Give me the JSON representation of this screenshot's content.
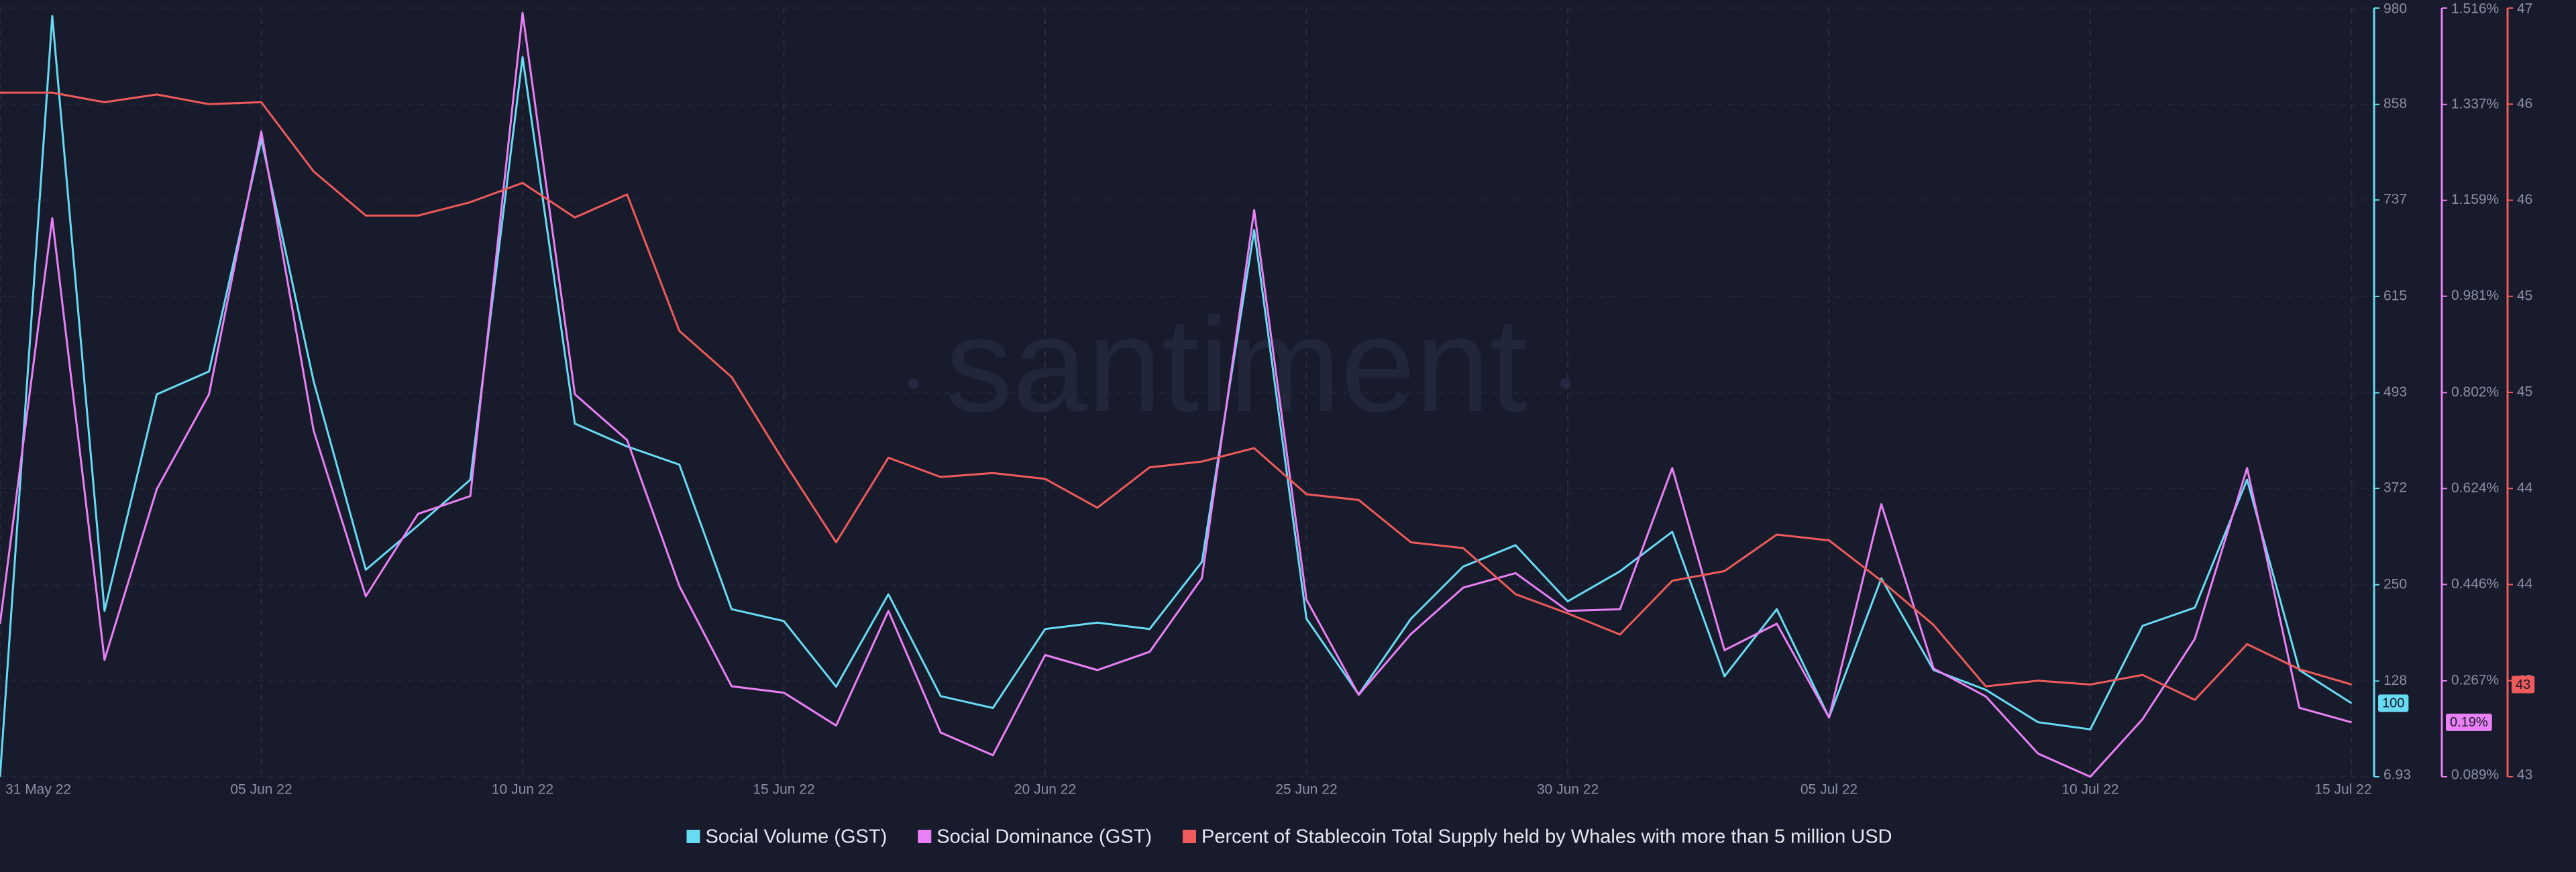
{
  "chart_data": {
    "type": "line",
    "watermark": "santiment",
    "x": [
      "2022-05-31",
      "2022-06-01",
      "2022-06-02",
      "2022-06-03",
      "2022-06-04",
      "2022-06-05",
      "2022-06-06",
      "2022-06-07",
      "2022-06-08",
      "2022-06-09",
      "2022-06-10",
      "2022-06-11",
      "2022-06-12",
      "2022-06-13",
      "2022-06-14",
      "2022-06-15",
      "2022-06-16",
      "2022-06-17",
      "2022-06-18",
      "2022-06-19",
      "2022-06-20",
      "2022-06-21",
      "2022-06-22",
      "2022-06-23",
      "2022-06-24",
      "2022-06-25",
      "2022-06-26",
      "2022-06-27",
      "2022-06-28",
      "2022-06-29",
      "2022-06-30",
      "2022-07-01",
      "2022-07-02",
      "2022-07-03",
      "2022-07-04",
      "2022-07-05",
      "2022-07-06",
      "2022-07-07",
      "2022-07-08",
      "2022-07-09",
      "2022-07-10",
      "2022-07-11",
      "2022-07-12",
      "2022-07-13",
      "2022-07-14",
      "2022-07-15"
    ],
    "xticks": [
      {
        "value": "2022-05-31",
        "label": "31 May 22"
      },
      {
        "value": "2022-06-05",
        "label": "05 Jun 22"
      },
      {
        "value": "2022-06-10",
        "label": "10 Jun 22"
      },
      {
        "value": "2022-06-15",
        "label": "15 Jun 22"
      },
      {
        "value": "2022-06-20",
        "label": "20 Jun 22"
      },
      {
        "value": "2022-06-25",
        "label": "25 Jun 22"
      },
      {
        "value": "2022-06-30",
        "label": "30 Jun 22"
      },
      {
        "value": "2022-07-05",
        "label": "05 Jul 22"
      },
      {
        "value": "2022-07-10",
        "label": "10 Jul 22"
      },
      {
        "value": "2022-07-15",
        "label": "15 Jul 22"
      }
    ],
    "ylim": [
      6.93,
      980
    ],
    "yticks": [
      6.93,
      128,
      250,
      372,
      493,
      615,
      737,
      858,
      980
    ],
    "y2lim": [
      0.089,
      1.516
    ],
    "y2ticks": [
      {
        "value": 0.089,
        "label": "0.089%"
      },
      {
        "value": 0.267,
        "label": "0.267%"
      },
      {
        "value": 0.446,
        "label": "0.446%"
      },
      {
        "value": 0.624,
        "label": "0.624%"
      },
      {
        "value": 0.802,
        "label": "0.802%"
      },
      {
        "value": 0.981,
        "label": "0.981%"
      },
      {
        "value": 1.159,
        "label": "1.159%"
      },
      {
        "value": 1.337,
        "label": "1.337%"
      },
      {
        "value": 1.516,
        "label": "1.516%"
      }
    ],
    "y3lim": [
      43,
      47
    ],
    "y3ticks": [
      43,
      {
        "value": 43.5,
        "label": "43"
      },
      44,
      {
        "value": 44.5,
        "label": "44"
      },
      45,
      {
        "value": 45.5,
        "label": "45"
      },
      46,
      {
        "value": 46.5,
        "label": "46"
      },
      47
    ],
    "grid": true,
    "series": [
      {
        "name": "Social Volume (GST)",
        "color": "#68dbf4",
        "axis": "y",
        "last_label": "100",
        "values": [
          6.93,
          970,
          217,
          491,
          520,
          814,
          508,
          269,
          325,
          383,
          918,
          454,
          425,
          402,
          219,
          204,
          121,
          238,
          109,
          94,
          194,
          202,
          194,
          279,
          699,
          207,
          111,
          207,
          273,
          300,
          229,
          267,
          317,
          134,
          219,
          82,
          258,
          142,
          117,
          76,
          67,
          198,
          221,
          383,
          142,
          100
        ]
      },
      {
        "name": "Social Dominance (GST)",
        "color": "#ea80f5",
        "axis": "y2",
        "last_label": "0.19%",
        "values": [
          0.373,
          1.126,
          0.306,
          0.623,
          0.799,
          1.287,
          0.732,
          0.424,
          0.577,
          0.61,
          1.507,
          0.799,
          0.714,
          0.443,
          0.257,
          0.245,
          0.184,
          0.397,
          0.171,
          0.129,
          0.315,
          0.287,
          0.321,
          0.458,
          1.141,
          0.418,
          0.241,
          0.354,
          0.44,
          0.467,
          0.397,
          0.4,
          0.662,
          0.324,
          0.373,
          0.199,
          0.595,
          0.29,
          0.238,
          0.132,
          0.089,
          0.196,
          0.345,
          0.662,
          0.217,
          0.19
        ]
      },
      {
        "name": "Percent of Stablecoin Total Supply held by Whales with more than 5 million USD",
        "color": "#ef5b5b",
        "axis": "y3",
        "last_label": "43",
        "values": [
          46.56,
          46.56,
          46.51,
          46.55,
          46.5,
          46.51,
          46.15,
          45.92,
          45.92,
          45.99,
          46.09,
          45.91,
          46.03,
          45.32,
          45.08,
          44.64,
          44.22,
          44.66,
          44.56,
          44.58,
          44.55,
          44.4,
          44.61,
          44.64,
          44.71,
          44.47,
          44.44,
          44.22,
          44.19,
          43.95,
          43.85,
          43.74,
          44.02,
          44.07,
          44.26,
          44.23,
          44.02,
          43.79,
          43.47,
          43.5,
          43.48,
          43.53,
          43.4,
          43.69,
          43.56,
          43.48
        ]
      }
    ]
  }
}
